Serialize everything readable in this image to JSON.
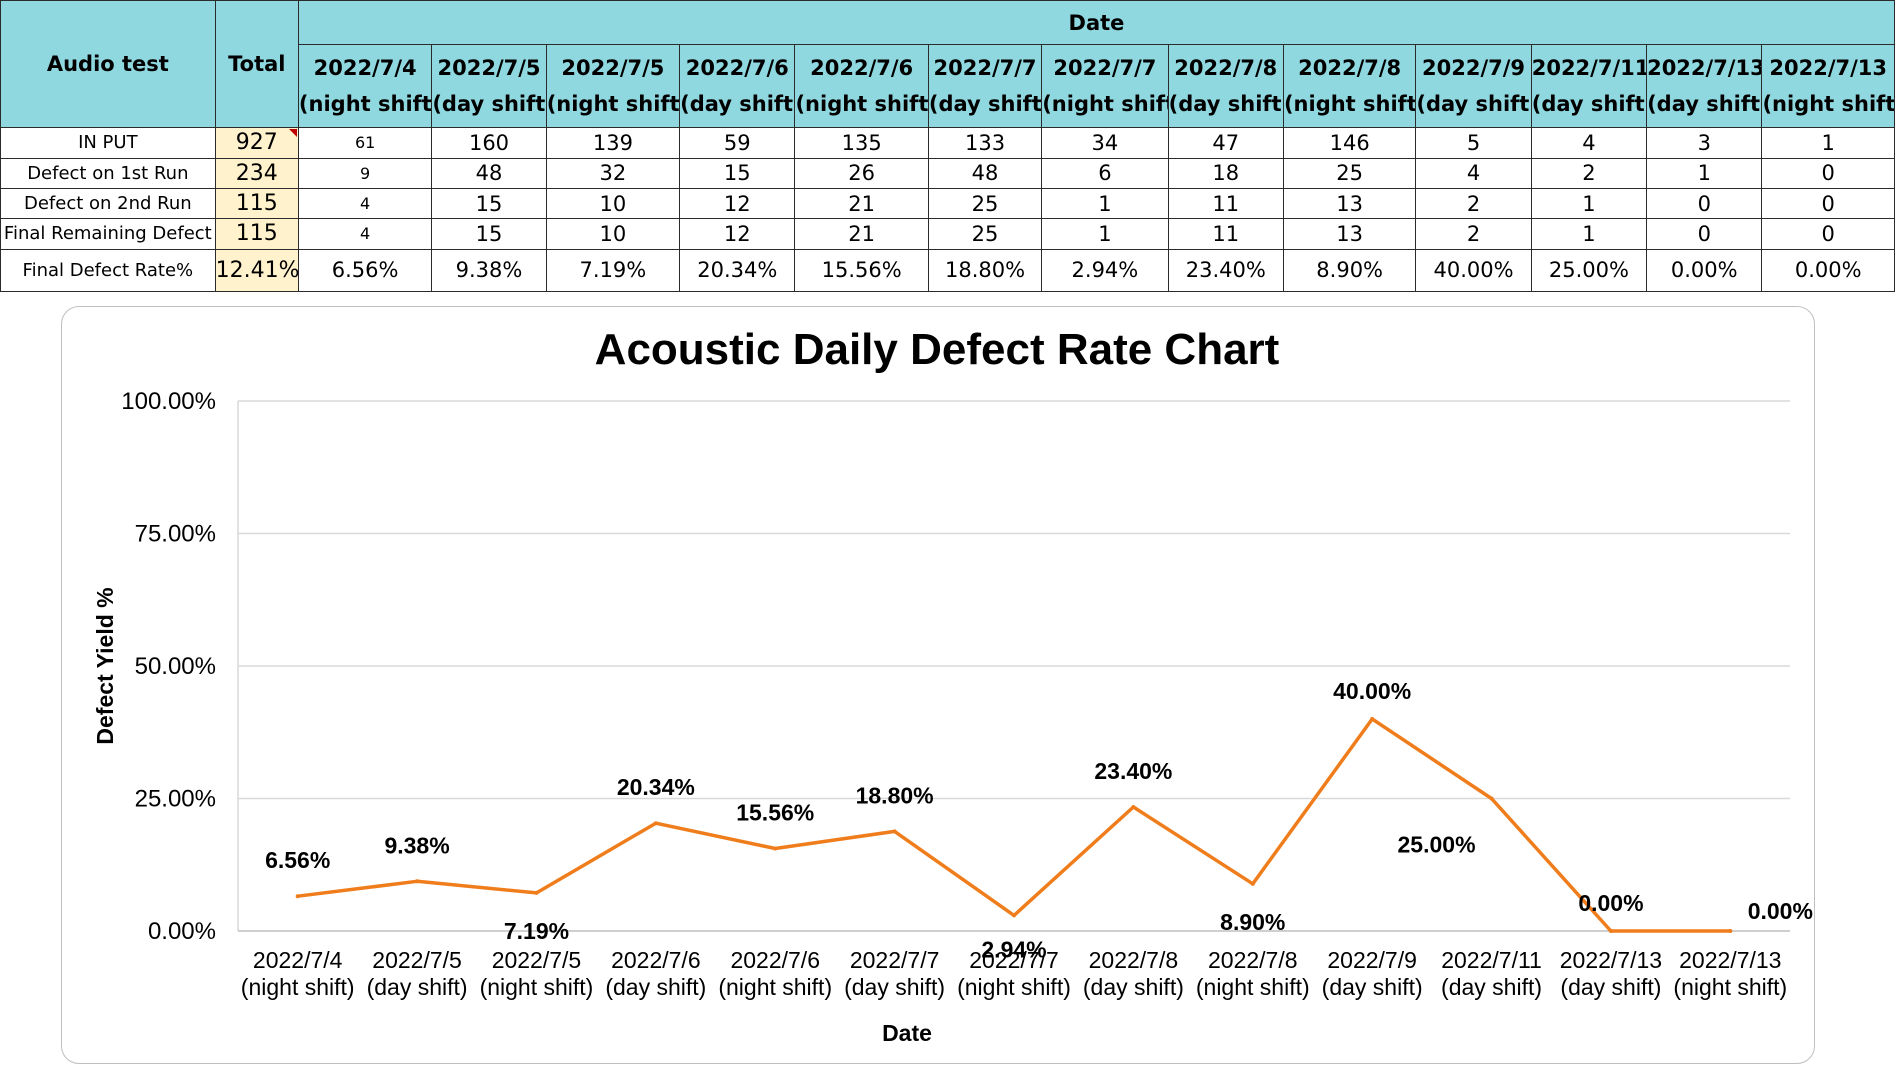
{
  "table": {
    "corner_label": "Audio test",
    "total_label": "Total",
    "date_group_label": "Date",
    "columns": [
      {
        "date": "2022/7/4",
        "shift": "(night shift)"
      },
      {
        "date": "2022/7/5",
        "shift": "(day shift)"
      },
      {
        "date": "2022/7/5",
        "shift": "(night shift)"
      },
      {
        "date": "2022/7/6",
        "shift": "(day shift)"
      },
      {
        "date": "2022/7/6",
        "shift": "(night shift)"
      },
      {
        "date": "2022/7/7",
        "shift": "(day shift)"
      },
      {
        "date": "2022/7/7",
        "shift": "(night shift)"
      },
      {
        "date": "2022/7/8",
        "shift": "(day shift)"
      },
      {
        "date": "2022/7/8",
        "shift": "(night shift)"
      },
      {
        "date": "2022/7/9",
        "shift": "(day shift)"
      },
      {
        "date": "2022/7/11",
        "shift": "(day shift)"
      },
      {
        "date": "2022/7/13",
        "shift": "(day shift)"
      },
      {
        "date": "2022/7/13",
        "shift": "(night shift)"
      }
    ],
    "rows": [
      {
        "label": "IN PUT",
        "total": "927",
        "values": [
          "61",
          "160",
          "139",
          "59",
          "135",
          "133",
          "34",
          "47",
          "146",
          "5",
          "4",
          "3",
          "1"
        ]
      },
      {
        "label": "Defect on 1st Run",
        "total": "234",
        "values": [
          "9",
          "48",
          "32",
          "15",
          "26",
          "48",
          "6",
          "18",
          "25",
          "4",
          "2",
          "1",
          "0"
        ]
      },
      {
        "label": "Defect on 2nd Run",
        "total": "115",
        "values": [
          "4",
          "15",
          "10",
          "12",
          "21",
          "25",
          "1",
          "11",
          "13",
          "2",
          "1",
          "0",
          "0"
        ]
      },
      {
        "label": "Final Remaining Defect",
        "total": "115",
        "values": [
          "4",
          "15",
          "10",
          "12",
          "21",
          "25",
          "1",
          "11",
          "13",
          "2",
          "1",
          "0",
          "0"
        ]
      },
      {
        "label": "Final Defect Rate%",
        "total": "12.41%",
        "values": [
          "6.56%",
          "9.38%",
          "7.19%",
          "20.34%",
          "15.56%",
          "18.80%",
          "2.94%",
          "23.40%",
          "8.90%",
          "40.00%",
          "25.00%",
          "0.00%",
          "0.00%"
        ]
      }
    ]
  },
  "chart_data": {
    "type": "line",
    "title": "Acoustic Daily Defect Rate Chart",
    "xlabel": "Date",
    "ylabel": "Defect Yield %",
    "categories": [
      [
        "2022/7/4",
        "(night shift)"
      ],
      [
        "2022/7/5",
        "(day shift)"
      ],
      [
        "2022/7/5",
        "(night shift)"
      ],
      [
        "2022/7/6",
        "(day shift)"
      ],
      [
        "2022/7/6",
        "(night shift)"
      ],
      [
        "2022/7/7",
        "(day shift)"
      ],
      [
        "2022/7/7",
        "(night shift)"
      ],
      [
        "2022/7/8",
        "(day shift)"
      ],
      [
        "2022/7/8",
        "(night shift)"
      ],
      [
        "2022/7/9",
        "(day shift)"
      ],
      [
        "2022/7/11",
        "(day shift)"
      ],
      [
        "2022/7/13",
        "(day shift)"
      ],
      [
        "2022/7/13",
        "(night shift)"
      ]
    ],
    "values": [
      6.56,
      9.38,
      7.19,
      20.34,
      15.56,
      18.8,
      2.94,
      23.4,
      8.9,
      40.0,
      25.0,
      0.0,
      0.0
    ],
    "data_labels": [
      "6.56%",
      "9.38%",
      "7.19%",
      "20.34%",
      "15.56%",
      "18.80%",
      "2.94%",
      "23.40%",
      "8.90%",
      "40.00%",
      "25.00%",
      "0.00%",
      "0.00%"
    ],
    "ylim": [
      0,
      100
    ],
    "yticks": [
      "0.00%",
      "25.00%",
      "50.00%",
      "75.00%",
      "100.00%"
    ],
    "grid": true,
    "legend": "none",
    "line_color": "#f07d1c",
    "grid_color": "#d9d9d9"
  }
}
